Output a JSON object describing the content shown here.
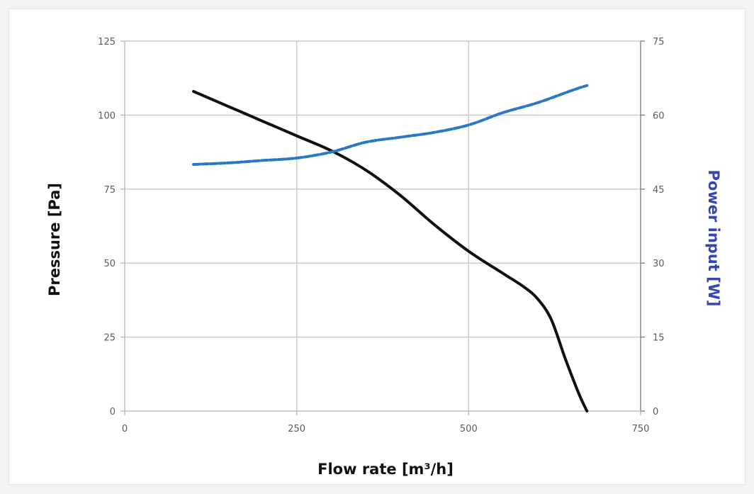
{
  "chart_data": {
    "type": "line",
    "xlabel": "Flow rate [m³/h]",
    "ylabel_left": "Pressure [Pa]",
    "ylabel_right": "Power input [W]",
    "xlim": [
      0,
      750
    ],
    "ylim_left": [
      0,
      125
    ],
    "ylim_right": [
      0,
      75
    ],
    "x_ticks": [
      0,
      250,
      500,
      750
    ],
    "y_left_ticks": [
      0,
      25,
      50,
      75,
      100,
      125
    ],
    "y_right_ticks": [
      0,
      15,
      30,
      45,
      60,
      75
    ],
    "grid": true,
    "colors": {
      "pressure": "#111111",
      "power": "#2b78c5",
      "label_power": "#3545b5",
      "grid": "#cccccc"
    },
    "series": [
      {
        "axis": "left",
        "style": "solid",
        "x": [
          100,
          150,
          200,
          250,
          300,
          350,
          400,
          450,
          500,
          550,
          580,
          600,
          620,
          640,
          660,
          672
        ],
        "y": [
          108,
          103,
          98,
          93,
          88,
          81.5,
          73,
          63,
          54,
          46.5,
          42,
          38,
          31,
          18,
          6,
          0
        ]
      },
      {
        "axis": "right",
        "style": "dashed",
        "x": [
          100,
          150,
          200,
          250,
          300,
          350,
          400,
          450,
          500,
          550,
          600,
          650,
          672
        ],
        "y": [
          50,
          50.3,
          50.8,
          51.3,
          52.5,
          54.5,
          55.5,
          56.5,
          58,
          60.5,
          62.5,
          65,
          66
        ]
      }
    ]
  }
}
